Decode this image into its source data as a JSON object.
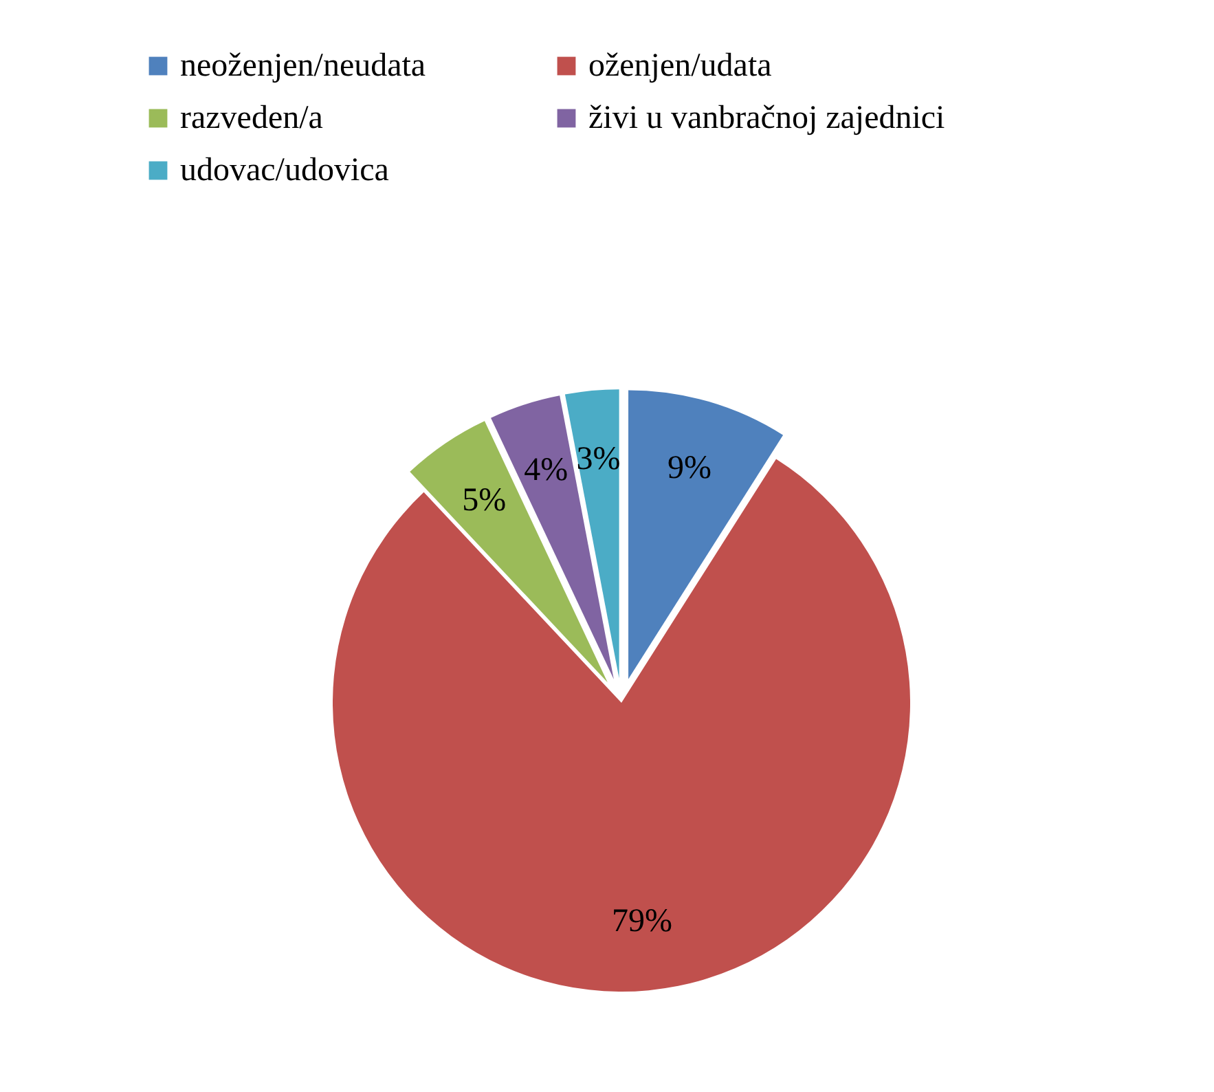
{
  "chart_data": {
    "type": "pie",
    "categories": [
      "neoženjen/neudata",
      "oženjen/udata",
      "razveden/a",
      "živi u vanbračnoj zajednici",
      "udovac/udovica"
    ],
    "values": [
      9,
      79,
      5,
      4,
      3
    ],
    "value_labels": [
      "9%",
      "79%",
      "5%",
      "4%",
      "3%"
    ],
    "colors": [
      "#4f81bd",
      "#c0504d",
      "#9bbb59",
      "#8064a2",
      "#4bacc6"
    ],
    "legend": "top"
  }
}
